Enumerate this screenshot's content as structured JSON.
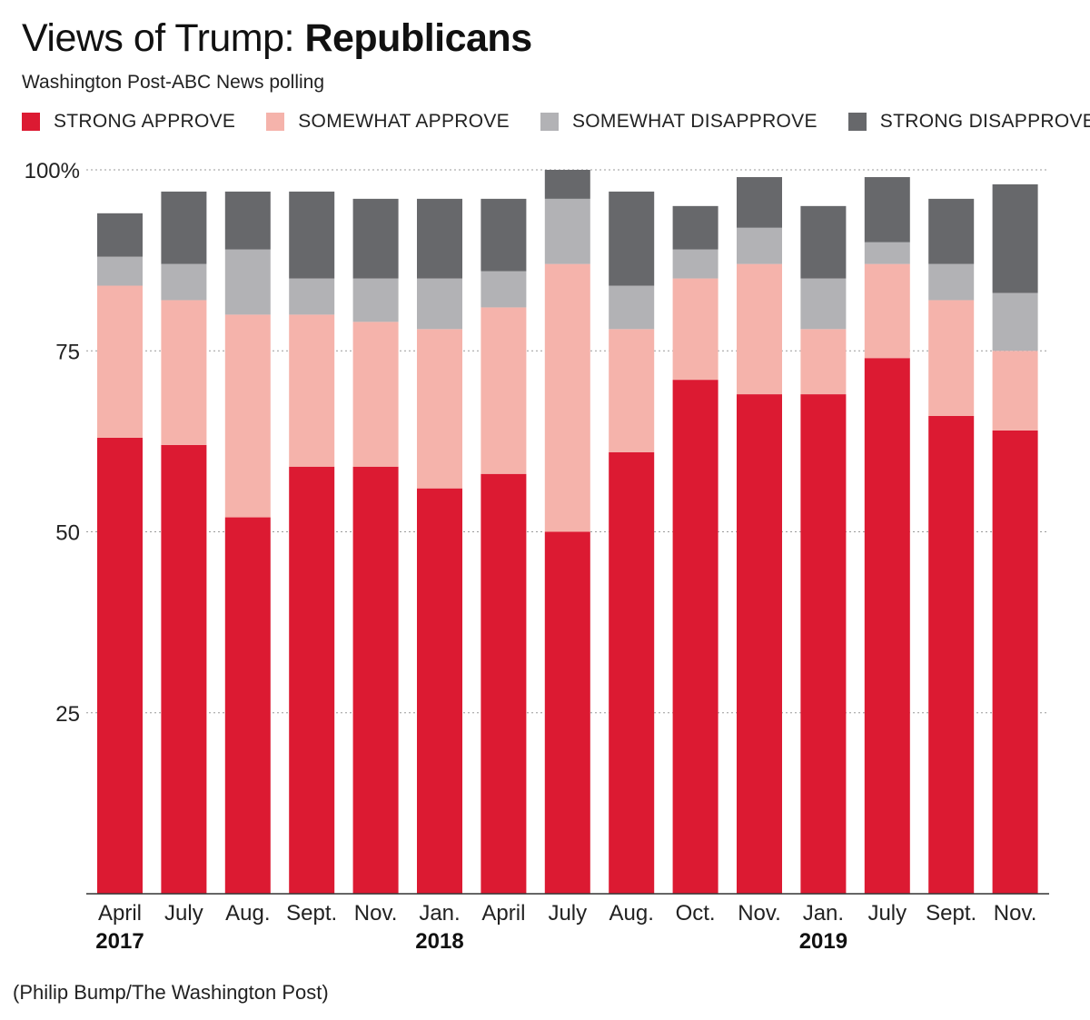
{
  "header": {
    "title_light": "Views of Trump: ",
    "title_bold": "Republicans",
    "subtitle": "Washington Post-ABC News polling"
  },
  "legend": {
    "items": [
      {
        "label": "STRONG APPROVE",
        "color": "#dc1a32"
      },
      {
        "label": "SOMEWHAT APPROVE",
        "color": "#f5b3ab"
      },
      {
        "label": "SOMEWHAT DISAPPROVE",
        "color": "#b2b2b5"
      },
      {
        "label": "STRONG DISAPPROVE",
        "color": "#67686b"
      }
    ]
  },
  "chart_data": {
    "type": "bar",
    "stacked": true,
    "categories": [
      "April",
      "July",
      "Aug.",
      "Sept.",
      "Nov.",
      "Jan.",
      "April",
      "July",
      "Aug.",
      "Oct.",
      "Nov.",
      "Jan.",
      "July",
      "Sept.",
      "Nov."
    ],
    "year_labels": [
      {
        "index": 0,
        "label": "2017"
      },
      {
        "index": 5,
        "label": "2018"
      },
      {
        "index": 11,
        "label": "2019"
      }
    ],
    "series": [
      {
        "name": "STRONG APPROVE",
        "color": "#dc1a32",
        "values": [
          63,
          62,
          52,
          59,
          59,
          56,
          58,
          50,
          61,
          71,
          69,
          69,
          74,
          66,
          64
        ]
      },
      {
        "name": "SOMEWHAT APPROVE",
        "color": "#f5b3ab",
        "values": [
          21,
          20,
          28,
          21,
          20,
          22,
          23,
          37,
          17,
          14,
          18,
          9,
          13,
          16,
          11
        ]
      },
      {
        "name": "SOMEWHAT DISAPPROVE",
        "color": "#b2b2b5",
        "values": [
          4,
          5,
          9,
          5,
          6,
          7,
          5,
          9,
          6,
          4,
          5,
          7,
          3,
          5,
          8
        ]
      },
      {
        "name": "STRONG DISAPPROVE",
        "color": "#67686b",
        "values": [
          6,
          10,
          8,
          12,
          11,
          11,
          10,
          4,
          13,
          6,
          7,
          10,
          9,
          9,
          15
        ]
      }
    ],
    "yticks": [
      {
        "value": 100,
        "label": "100%"
      },
      {
        "value": 75,
        "label": "75"
      },
      {
        "value": 50,
        "label": "50"
      },
      {
        "value": 25,
        "label": "25"
      }
    ],
    "ylim": [
      0,
      100
    ],
    "grid": true,
    "legend_position": "top"
  },
  "credit": "(Philip Bump/The Washington Post)"
}
